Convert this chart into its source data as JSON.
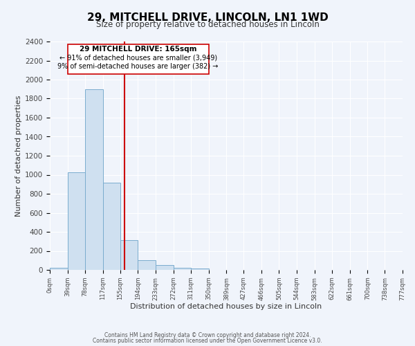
{
  "title": "29, MITCHELL DRIVE, LINCOLN, LN1 1WD",
  "subtitle": "Size of property relative to detached houses in Lincoln",
  "xlabel": "Distribution of detached houses by size in Lincoln",
  "ylabel": "Number of detached properties",
  "bar_color": "#cfe0f0",
  "bar_edge_color": "#7aacce",
  "background_color": "#f0f4fb",
  "grid_color": "#ffffff",
  "annotation_line_color": "#cc0000",
  "bins": [
    0,
    39,
    78,
    117,
    155,
    194,
    233,
    272,
    311,
    350,
    389,
    427,
    466,
    505,
    544,
    583,
    622,
    661,
    700,
    738,
    777
  ],
  "bin_labels": [
    "0sqm",
    "39sqm",
    "78sqm",
    "117sqm",
    "155sqm",
    "194sqm",
    "233sqm",
    "272sqm",
    "311sqm",
    "350sqm",
    "389sqm",
    "427sqm",
    "466sqm",
    "505sqm",
    "544sqm",
    "583sqm",
    "622sqm",
    "661sqm",
    "700sqm",
    "738sqm",
    "777sqm"
  ],
  "counts": [
    20,
    1025,
    1900,
    920,
    315,
    105,
    50,
    20,
    15,
    0,
    0,
    0,
    0,
    0,
    0,
    0,
    0,
    0,
    0,
    0
  ],
  "ylim": [
    0,
    2400
  ],
  "yticks": [
    0,
    200,
    400,
    600,
    800,
    1000,
    1200,
    1400,
    1600,
    1800,
    2000,
    2200,
    2400
  ],
  "property_line_x": 165,
  "annotation_title": "29 MITCHELL DRIVE: 165sqm",
  "annotation_line1": "← 91% of detached houses are smaller (3,949)",
  "annotation_line2": "9% of semi-detached houses are larger (382) →",
  "footer_line1": "Contains HM Land Registry data © Crown copyright and database right 2024.",
  "footer_line2": "Contains public sector information licensed under the Open Government Licence v3.0."
}
